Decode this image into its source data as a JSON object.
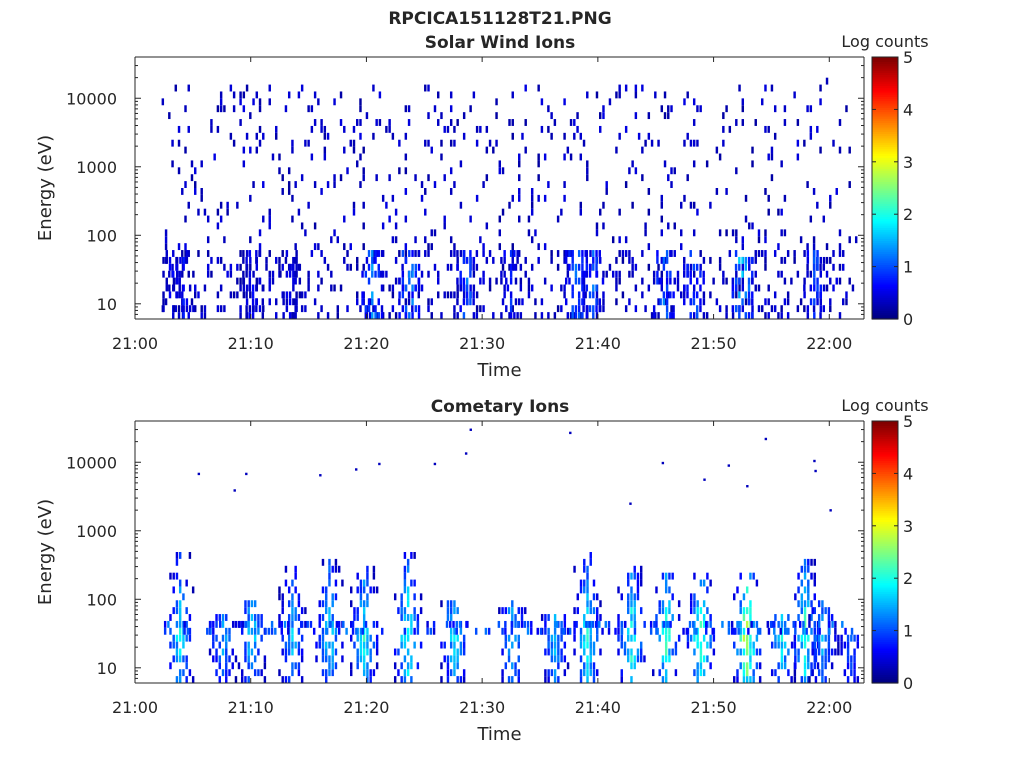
{
  "figure": {
    "title": "RPCICA151128T21.PNG"
  },
  "chart_data": [
    {
      "type": "heatmap",
      "title": "Solar Wind Ions",
      "xlabel": "Time",
      "ylabel": "Energy (eV)",
      "x_ticks": [
        "21:00",
        "21:10",
        "21:20",
        "21:30",
        "21:40",
        "21:50",
        "22:00"
      ],
      "x_range": [
        "21:00",
        "22:03"
      ],
      "y_ticks": [
        "10",
        "100",
        "1000",
        "10000"
      ],
      "y_scale": "log",
      "y_range": [
        6,
        40000
      ],
      "colorbar": {
        "label": "Log counts",
        "ticks": [
          "0",
          "1",
          "2",
          "3",
          "4",
          "5"
        ],
        "range": [
          0,
          5
        ],
        "colormap": "jet"
      },
      "data_extent_minutes": [
        2.3,
        62.5
      ],
      "texture": "sparse isolated low-count bins across the full energy range; denser columns below ~60 eV",
      "low_energy_events": [
        {
          "t": 3.2,
          "level": 0.7
        },
        {
          "t": 4.1,
          "level": 0.8
        },
        {
          "t": 10.1,
          "level": 0.7
        },
        {
          "t": 13.3,
          "level": 0.6
        },
        {
          "t": 20.4,
          "level": 1.4
        },
        {
          "t": 23.6,
          "level": 1.5
        },
        {
          "t": 28.6,
          "level": 1.2
        },
        {
          "t": 32.4,
          "level": 0.9
        },
        {
          "t": 38.0,
          "level": 1.3
        },
        {
          "t": 39.5,
          "level": 1.2
        },
        {
          "t": 45.6,
          "level": 1.3
        },
        {
          "t": 48.2,
          "level": 1.2
        },
        {
          "t": 52.4,
          "level": 1.9
        },
        {
          "t": 58.6,
          "level": 1.1
        }
      ],
      "bin_count_level_range": [
        0,
        2
      ]
    },
    {
      "type": "heatmap",
      "title": "Cometary Ions",
      "xlabel": "Time",
      "ylabel": "Energy (eV)",
      "x_ticks": [
        "21:00",
        "21:10",
        "21:20",
        "21:30",
        "21:40",
        "21:50",
        "22:00"
      ],
      "x_range": [
        "21:00",
        "22:03"
      ],
      "y_ticks": [
        "10",
        "100",
        "1000",
        "10000"
      ],
      "y_scale": "log",
      "y_range": [
        6,
        40000
      ],
      "colorbar": {
        "label": "Log counts",
        "ticks": [
          "0",
          "1",
          "2",
          "3",
          "4",
          "5"
        ],
        "range": [
          0,
          5
        ],
        "colormap": "jet"
      },
      "data_extent_minutes": [
        2.5,
        62.5
      ],
      "texture": "bursts of counts rising from ~6 eV up to ~300 eV, peaking around 15-50 eV; sparse isolated bins up to ~30000 eV",
      "events": [
        {
          "t": 3.8,
          "peak_level": 2.0,
          "top_eV": 400
        },
        {
          "t": 7.5,
          "peak_level": 1.6,
          "top_eV": 60
        },
        {
          "t": 10.0,
          "peak_level": 1.9,
          "top_eV": 80
        },
        {
          "t": 13.5,
          "peak_level": 1.7,
          "top_eV": 250
        },
        {
          "t": 16.7,
          "peak_level": 2.0,
          "top_eV": 350
        },
        {
          "t": 19.7,
          "peak_level": 2.1,
          "top_eV": 300
        },
        {
          "t": 23.5,
          "peak_level": 2.3,
          "top_eV": 450
        },
        {
          "t": 27.5,
          "peak_level": 2.0,
          "top_eV": 90
        },
        {
          "t": 32.5,
          "peak_level": 1.8,
          "top_eV": 80
        },
        {
          "t": 36.2,
          "peak_level": 1.7,
          "top_eV": 60
        },
        {
          "t": 39.0,
          "peak_level": 2.2,
          "top_eV": 400
        },
        {
          "t": 42.8,
          "peak_level": 2.3,
          "top_eV": 280
        },
        {
          "t": 45.8,
          "peak_level": 2.4,
          "top_eV": 200
        },
        {
          "t": 48.8,
          "peak_level": 2.5,
          "top_eV": 200
        },
        {
          "t": 52.8,
          "peak_level": 3.1,
          "top_eV": 200
        },
        {
          "t": 55.8,
          "peak_level": 2.0,
          "top_eV": 60
        },
        {
          "t": 57.8,
          "peak_level": 2.3,
          "top_eV": 350
        },
        {
          "t": 59.3,
          "peak_level": 1.6,
          "top_eV": 80
        },
        {
          "t": 61.8,
          "peak_level": 1.2,
          "top_eV": 30
        }
      ],
      "isolated_high_energy_bins_eV": [
        [
          5.5,
          6800
        ],
        [
          8.6,
          3900
        ],
        [
          9.6,
          6800
        ],
        [
          16.0,
          6500
        ],
        [
          19.1,
          7900
        ],
        [
          21.1,
          9500
        ],
        [
          25.9,
          9500
        ],
        [
          28.6,
          13500
        ],
        [
          29.0,
          30000
        ],
        [
          37.6,
          27000
        ],
        [
          42.8,
          2500
        ],
        [
          45.6,
          9800
        ],
        [
          49.2,
          5600
        ],
        [
          51.3,
          9000
        ],
        [
          52.9,
          4500
        ],
        [
          54.5,
          22000
        ],
        [
          58.7,
          10500
        ],
        [
          58.8,
          7500
        ],
        [
          60.1,
          2000
        ]
      ],
      "bin_count_level_range": [
        0,
        3.2
      ]
    }
  ]
}
